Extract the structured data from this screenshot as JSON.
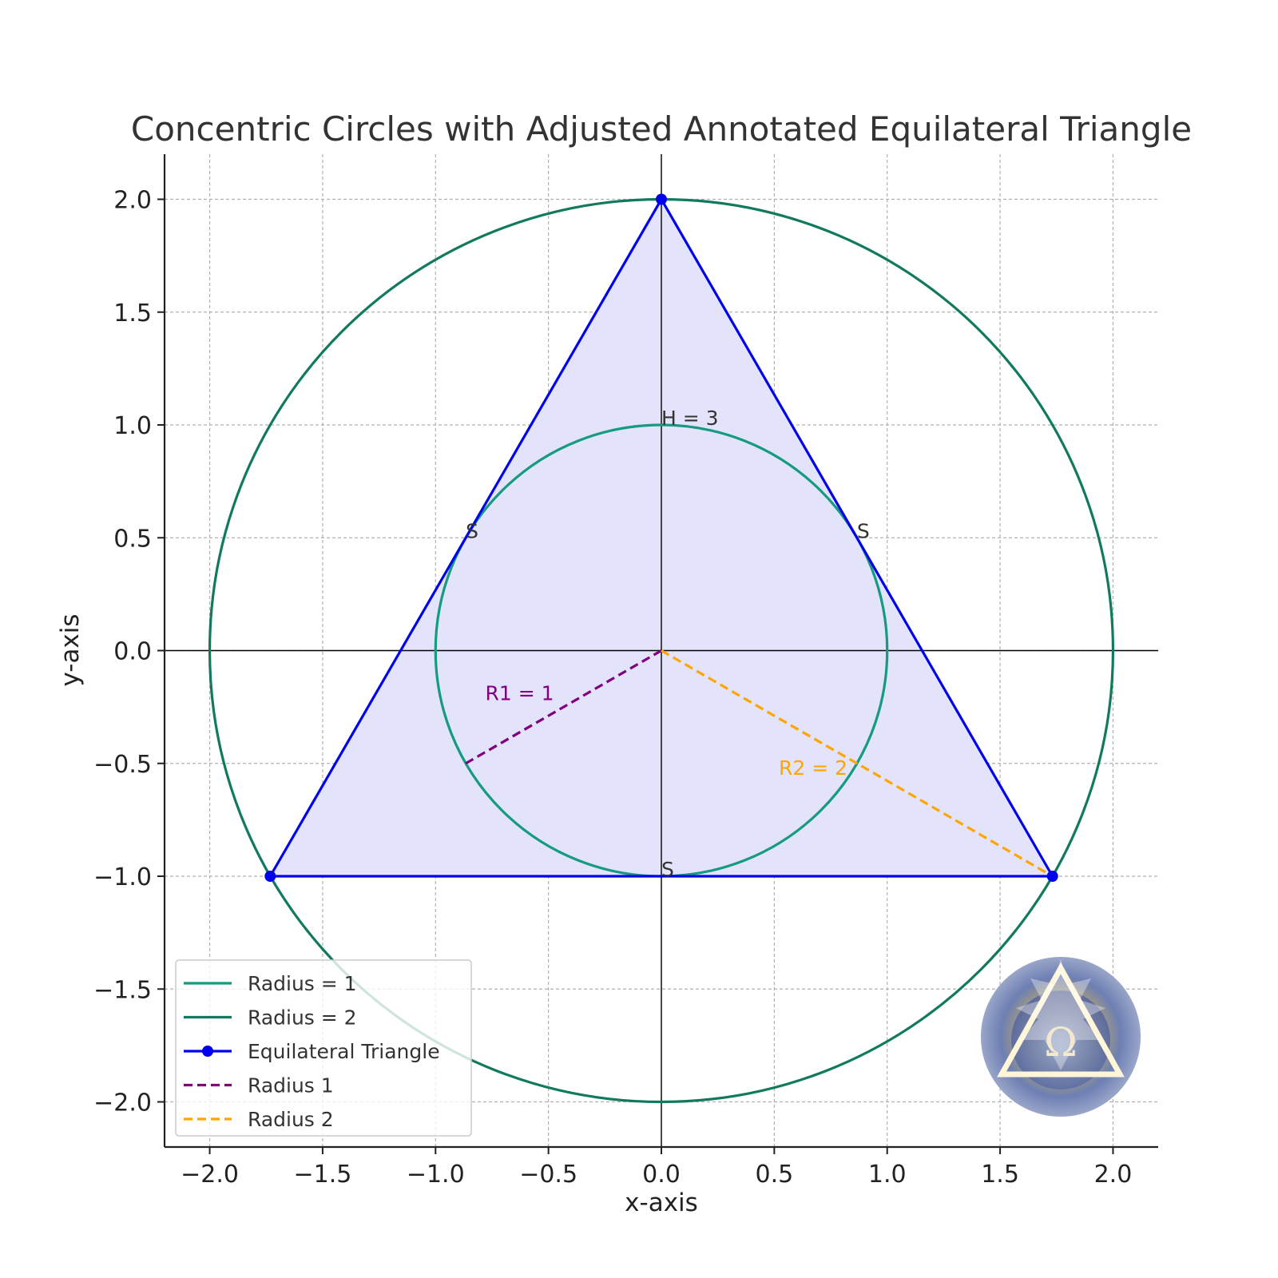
{
  "chart_data": {
    "type": "line",
    "title": "Concentric Circles with Adjusted Annotated Equilateral Triangle",
    "xlabel": "x-axis",
    "ylabel": "y-axis",
    "xlim": [
      -2.2,
      2.2
    ],
    "ylim": [
      -2.2,
      2.2
    ],
    "xticks": [
      -2.0,
      -1.5,
      -1.0,
      -0.5,
      0.0,
      0.5,
      1.0,
      1.5,
      2.0
    ],
    "yticks": [
      -2.0,
      -1.5,
      -1.0,
      -0.5,
      0.0,
      0.5,
      1.0,
      1.5,
      2.0
    ],
    "xtick_labels": [
      "−2.0",
      "−1.5",
      "−1.0",
      "−0.5",
      "0.0",
      "0.5",
      "1.0",
      "1.5",
      "2.0"
    ],
    "ytick_labels": [
      "−2.0",
      "−1.5",
      "−1.0",
      "−0.5",
      "0.0",
      "0.5",
      "1.0",
      "1.5",
      "2.0"
    ],
    "grid": true,
    "legend_position": "bottom-left",
    "circles": [
      {
        "name": "Radius = 1",
        "cx": 0,
        "cy": 0,
        "r": 1,
        "color": "#159b80"
      },
      {
        "name": "Radius = 2",
        "cx": 0,
        "cy": 0,
        "r": 2,
        "color": "#117a5e"
      }
    ],
    "triangle": {
      "name": "Equilateral Triangle",
      "color": "#0000ee",
      "fill": "#e3e3fb",
      "vertices": [
        [
          0,
          2
        ],
        [
          -1.732,
          -1
        ],
        [
          1.732,
          -1
        ]
      ]
    },
    "radius_lines": [
      {
        "name": "Radius 1",
        "from": [
          0,
          0
        ],
        "to": [
          -0.866,
          -0.5
        ],
        "color": "#800080"
      },
      {
        "name": "Radius 2",
        "from": [
          0,
          0
        ],
        "to": [
          1.732,
          -1
        ],
        "color": "#ffa500"
      }
    ],
    "annotations": [
      {
        "text": "H = 3",
        "x": 0.0,
        "y": 1.0,
        "color": "#333333"
      },
      {
        "text": "S",
        "x": -0.866,
        "y": 0.5,
        "color": "#333333"
      },
      {
        "text": "S",
        "x": 0.866,
        "y": 0.5,
        "color": "#333333"
      },
      {
        "text": "S",
        "x": 0.0,
        "y": -1.0,
        "color": "#333333"
      },
      {
        "text": "R1 = 1",
        "x": -0.78,
        "y": -0.22,
        "color": "#800080"
      },
      {
        "text": "R2 = 2",
        "x": 0.52,
        "y": -0.55,
        "color": "#ffa500"
      }
    ],
    "legend": [
      {
        "label": "Radius = 1",
        "color": "#159b80",
        "style": "solid"
      },
      {
        "label": "Radius = 2",
        "color": "#117a5e",
        "style": "solid"
      },
      {
        "label": "Equilateral Triangle",
        "color": "#0000ee",
        "style": "solid-marker"
      },
      {
        "label": "Radius 1",
        "color": "#800080",
        "style": "dashed"
      },
      {
        "label": "Radius 2",
        "color": "#ffa500",
        "style": "dashed"
      }
    ],
    "logo": {
      "symbol": "Ω"
    }
  }
}
